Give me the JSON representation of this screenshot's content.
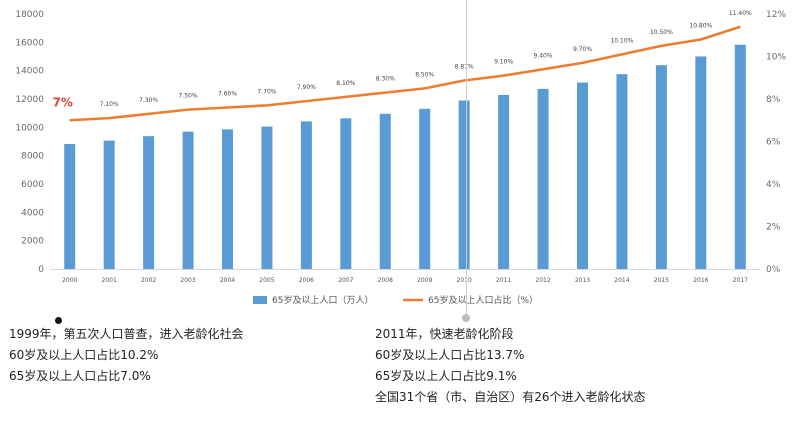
{
  "chart_data": {
    "type": "bar+line",
    "categories": [
      "2000",
      "2001",
      "2002",
      "2003",
      "2004",
      "2005",
      "2006",
      "2007",
      "2008",
      "2009",
      "2010",
      "2011",
      "2012",
      "2013",
      "2014",
      "2015",
      "2016",
      "2017"
    ],
    "series": [
      {
        "name": "65岁及以上人口（万人）",
        "type": "bar",
        "axis": "left",
        "color": "#5b9bd5",
        "values": [
          8821,
          9062,
          9377,
          9692,
          9857,
          10055,
          10419,
          10636,
          10956,
          11307,
          11894,
          12288,
          12714,
          13161,
          13755,
          14386,
          15003,
          15831
        ]
      },
      {
        "name": "65岁及以上人口占比（%）",
        "type": "line",
        "axis": "right",
        "color": "#ed7d31",
        "values": [
          7.0,
          7.1,
          7.3,
          7.5,
          7.6,
          7.7,
          7.9,
          8.1,
          8.3,
          8.5,
          8.87,
          9.1,
          9.4,
          9.7,
          10.1,
          10.5,
          10.8,
          11.4
        ],
        "labels": [
          "7%",
          "7.10%",
          "7.30%",
          "7.50%",
          "7.60%",
          "7.70%",
          "7.90%",
          "8.10%",
          "8.30%",
          "8.50%",
          "8.87%",
          "9.10%",
          "9.40%",
          "9.70%",
          "10.10%",
          "10.50%",
          "10.80%",
          "11.40%"
        ]
      }
    ],
    "ylim_left": [
      0,
      18000
    ],
    "yticks_left": [
      "0",
      "2000",
      "4000",
      "6000",
      "8000",
      "10000",
      "12000",
      "14000",
      "16000",
      "18000"
    ],
    "ylim_right": [
      0,
      12
    ],
    "yticks_right": [
      "0%",
      "2%",
      "4%",
      "6%",
      "8%",
      "10%",
      "12%"
    ],
    "grid": false,
    "legend": "bottom",
    "highlight": {
      "index": 0,
      "label": "7%",
      "color": "#e0443a"
    }
  },
  "notes": {
    "left": [
      "1999年，第五次人口普查，进入老龄化社会",
      "60岁及以上人口占比10.2%",
      "65岁及以上人口占比7.0%"
    ],
    "right": [
      "2011年，快速老龄化阶段",
      "60岁及以上人口占比13.7%",
      "65岁及以上人口占比9.1%",
      "全国31个省（市、自治区）有26个进入老龄化状态"
    ]
  }
}
